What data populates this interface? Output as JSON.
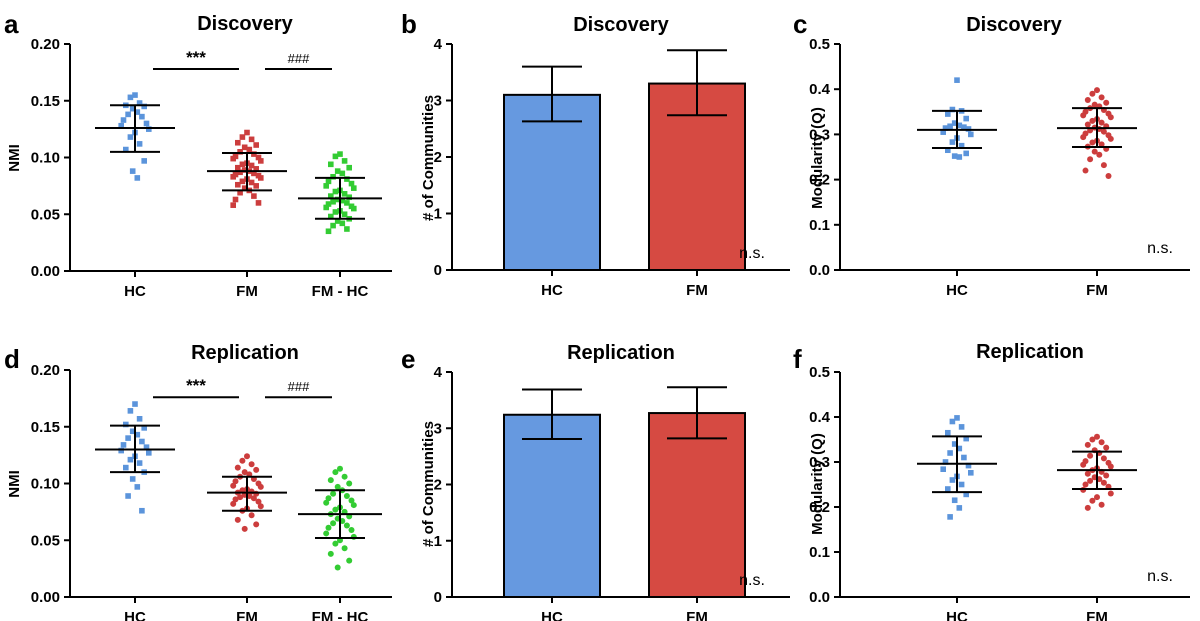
{
  "colors": {
    "HC": "#5b94db",
    "FM": "#cc3d3d",
    "FM - HC": "#33cc33",
    "bar_HC": "#6699e0",
    "bar_FM": "#d64a42",
    "axis": "#000000"
  },
  "chart_data": [
    {
      "id": "a",
      "panel_letter": "a",
      "type": "scatter",
      "title": "Discovery",
      "ylabel": "NMI",
      "categories": [
        "HC",
        "FM",
        "FM - HC"
      ],
      "ylim": [
        0,
        0.2
      ],
      "yticks": [
        "0.00",
        "0.05",
        "0.10",
        "0.15",
        "0.20"
      ],
      "series": [
        {
          "name": "HC",
          "marker": "square",
          "mean": 0.126,
          "sd_low": 0.105,
          "sd_high": 0.146,
          "values": [
            0.155,
            0.153,
            0.148,
            0.146,
            0.145,
            0.143,
            0.14,
            0.138,
            0.136,
            0.133,
            0.13,
            0.128,
            0.125,
            0.122,
            0.118,
            0.112,
            0.107,
            0.097,
            0.088,
            0.082
          ]
        },
        {
          "name": "FM",
          "marker": "square",
          "mean": 0.088,
          "sd_low": 0.071,
          "sd_high": 0.104,
          "values": [
            0.122,
            0.118,
            0.116,
            0.113,
            0.111,
            0.109,
            0.107,
            0.105,
            0.103,
            0.101,
            0.1,
            0.099,
            0.097,
            0.095,
            0.094,
            0.093,
            0.091,
            0.09,
            0.089,
            0.088,
            0.087,
            0.086,
            0.085,
            0.084,
            0.083,
            0.082,
            0.081,
            0.079,
            0.078,
            0.076,
            0.075,
            0.073,
            0.071,
            0.069,
            0.066,
            0.063,
            0.06,
            0.058
          ]
        },
        {
          "name": "FM - HC",
          "marker": "square",
          "mean": 0.064,
          "sd_low": 0.046,
          "sd_high": 0.082,
          "values": [
            0.103,
            0.101,
            0.097,
            0.094,
            0.091,
            0.088,
            0.086,
            0.083,
            0.081,
            0.079,
            0.077,
            0.075,
            0.073,
            0.071,
            0.07,
            0.068,
            0.066,
            0.065,
            0.063,
            0.062,
            0.061,
            0.06,
            0.059,
            0.057,
            0.056,
            0.055,
            0.053,
            0.052,
            0.05,
            0.048,
            0.046,
            0.044,
            0.042,
            0.04,
            0.037,
            0.035
          ]
        }
      ],
      "annotations": [
        {
          "from": 0,
          "to": 1,
          "label": "***",
          "y": 0.178
        },
        {
          "from": 1,
          "to": 2,
          "label": "###",
          "y": 0.178
        }
      ],
      "ns_label": ""
    },
    {
      "id": "b",
      "panel_letter": "b",
      "type": "bar",
      "title": "Discovery",
      "ylabel": "# of Communities",
      "categories": [
        "HC",
        "FM"
      ],
      "ylim": [
        0,
        4
      ],
      "yticks": [
        "0",
        "1",
        "2",
        "3",
        "4"
      ],
      "values": [
        3.1,
        3.3
      ],
      "err_low": [
        2.63,
        2.74
      ],
      "err_high": [
        3.6,
        3.89
      ],
      "ns_label": "n.s."
    },
    {
      "id": "c",
      "panel_letter": "c",
      "type": "scatter",
      "title": "Discovery",
      "ylabel": "Modularity (Q)",
      "categories": [
        "HC",
        "FM"
      ],
      "ylim": [
        0,
        0.5
      ],
      "yticks": [
        "0.0",
        "0.1",
        "0.2",
        "0.3",
        "0.4",
        "0.5"
      ],
      "series": [
        {
          "name": "HC",
          "marker": "square",
          "mean": 0.31,
          "sd_low": 0.27,
          "sd_high": 0.352,
          "values": [
            0.42,
            0.355,
            0.352,
            0.345,
            0.335,
            0.325,
            0.32,
            0.318,
            0.316,
            0.314,
            0.312,
            0.305,
            0.3,
            0.292,
            0.283,
            0.275,
            0.265,
            0.258,
            0.252,
            0.25
          ]
        },
        {
          "name": "FM",
          "marker": "circle",
          "mean": 0.314,
          "sd_low": 0.272,
          "sd_high": 0.358,
          "values": [
            0.398,
            0.39,
            0.382,
            0.376,
            0.37,
            0.366,
            0.362,
            0.358,
            0.354,
            0.35,
            0.346,
            0.342,
            0.338,
            0.334,
            0.33,
            0.326,
            0.322,
            0.318,
            0.315,
            0.312,
            0.309,
            0.306,
            0.302,
            0.298,
            0.294,
            0.29,
            0.286,
            0.282,
            0.278,
            0.273,
            0.268,
            0.262,
            0.255,
            0.245,
            0.232,
            0.22,
            0.208
          ]
        }
      ],
      "ns_label": "n.s."
    },
    {
      "id": "d",
      "panel_letter": "d",
      "type": "scatter",
      "title": "Replication",
      "ylabel": "NMI",
      "categories": [
        "HC",
        "FM",
        "FM - HC"
      ],
      "ylim": [
        0,
        0.2
      ],
      "yticks": [
        "0.00",
        "0.05",
        "0.10",
        "0.15",
        "0.20"
      ],
      "series": [
        {
          "name": "HC",
          "marker": "square",
          "mean": 0.13,
          "sd_low": 0.11,
          "sd_high": 0.151,
          "values": [
            0.17,
            0.164,
            0.157,
            0.152,
            0.149,
            0.146,
            0.143,
            0.14,
            0.137,
            0.134,
            0.132,
            0.129,
            0.127,
            0.124,
            0.121,
            0.118,
            0.114,
            0.11,
            0.104,
            0.097,
            0.089,
            0.076
          ]
        },
        {
          "name": "FM",
          "marker": "circle",
          "mean": 0.092,
          "sd_low": 0.076,
          "sd_high": 0.106,
          "values": [
            0.124,
            0.12,
            0.117,
            0.114,
            0.112,
            0.11,
            0.108,
            0.106,
            0.104,
            0.102,
            0.1,
            0.098,
            0.097,
            0.095,
            0.094,
            0.093,
            0.092,
            0.091,
            0.09,
            0.089,
            0.088,
            0.087,
            0.086,
            0.084,
            0.082,
            0.08,
            0.078,
            0.076,
            0.072,
            0.068,
            0.064,
            0.06
          ]
        },
        {
          "name": "FM - HC",
          "marker": "circle",
          "mean": 0.073,
          "sd_low": 0.052,
          "sd_high": 0.094,
          "values": [
            0.113,
            0.11,
            0.106,
            0.103,
            0.1,
            0.097,
            0.094,
            0.091,
            0.089,
            0.087,
            0.085,
            0.083,
            0.081,
            0.079,
            0.077,
            0.075,
            0.073,
            0.071,
            0.069,
            0.067,
            0.065,
            0.063,
            0.061,
            0.059,
            0.056,
            0.053,
            0.05,
            0.047,
            0.043,
            0.038,
            0.032,
            0.026
          ]
        }
      ],
      "annotations": [
        {
          "from": 0,
          "to": 1,
          "label": "***",
          "y": 0.176
        },
        {
          "from": 1,
          "to": 2,
          "label": "###",
          "y": 0.176
        }
      ],
      "ns_label": ""
    },
    {
      "id": "e",
      "panel_letter": "e",
      "type": "bar",
      "title": "Replication",
      "ylabel": "# of Communities",
      "categories": [
        "HC",
        "FM"
      ],
      "ylim": [
        0,
        4
      ],
      "yticks": [
        "0",
        "1",
        "2",
        "3",
        "4"
      ],
      "values": [
        3.24,
        3.27
      ],
      "err_low": [
        2.81,
        2.82
      ],
      "err_high": [
        3.69,
        3.73
      ],
      "ns_label": "n.s."
    },
    {
      "id": "f",
      "panel_letter": "f",
      "type": "scatter",
      "title": "Replication",
      "ylabel": "Modularity (Q)",
      "categories": [
        "HC",
        "FM"
      ],
      "ylim": [
        0,
        0.5
      ],
      "yticks": [
        "0.0",
        "0.1",
        "0.2",
        "0.3",
        "0.4",
        "0.5"
      ],
      "series": [
        {
          "name": "HC",
          "marker": "square",
          "mean": 0.296,
          "sd_low": 0.233,
          "sd_high": 0.357,
          "values": [
            0.398,
            0.39,
            0.378,
            0.365,
            0.352,
            0.34,
            0.33,
            0.32,
            0.31,
            0.3,
            0.292,
            0.284,
            0.276,
            0.268,
            0.26,
            0.25,
            0.24,
            0.228,
            0.215,
            0.198,
            0.178
          ]
        },
        {
          "name": "FM",
          "marker": "circle",
          "mean": 0.282,
          "sd_low": 0.24,
          "sd_high": 0.323,
          "values": [
            0.356,
            0.35,
            0.344,
            0.338,
            0.332,
            0.326,
            0.32,
            0.314,
            0.308,
            0.302,
            0.298,
            0.294,
            0.29,
            0.286,
            0.282,
            0.278,
            0.274,
            0.27,
            0.266,
            0.262,
            0.258,
            0.254,
            0.25,
            0.245,
            0.238,
            0.23,
            0.222,
            0.214,
            0.205,
            0.198
          ]
        }
      ],
      "ns_label": "n.s."
    }
  ]
}
